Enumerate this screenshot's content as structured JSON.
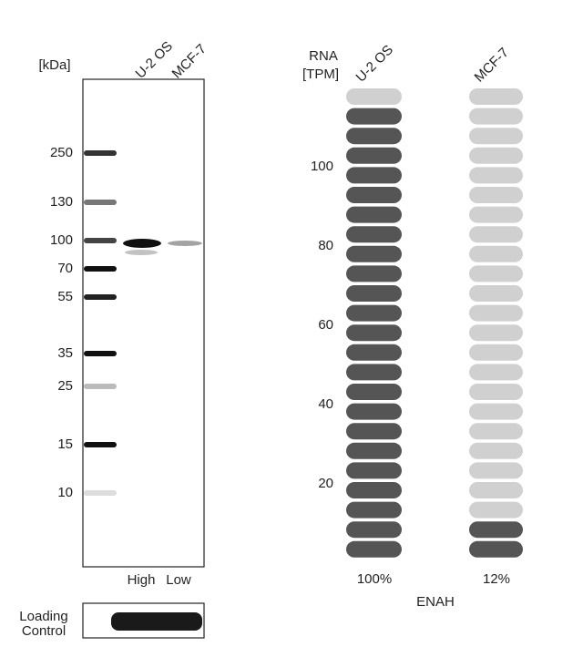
{
  "western_blot": {
    "unit_label": "[kDa]",
    "lanes": [
      "U-2 OS",
      "MCF-7"
    ],
    "markers": [
      "250",
      "130",
      "100",
      "70",
      "55",
      "35",
      "25",
      "15",
      "10"
    ],
    "lane_levels": [
      "High",
      "Low"
    ],
    "loading_control": [
      "Loading",
      "Control"
    ]
  },
  "rna": {
    "axis_label": [
      "RNA",
      "[TPM]"
    ],
    "cell_lines": [
      "U-2 OS",
      "MCF-7"
    ],
    "ticks": [
      "100",
      "80",
      "60",
      "40",
      "20"
    ],
    "percentages": [
      "100%",
      "12%"
    ],
    "gene": "ENAH"
  }
}
